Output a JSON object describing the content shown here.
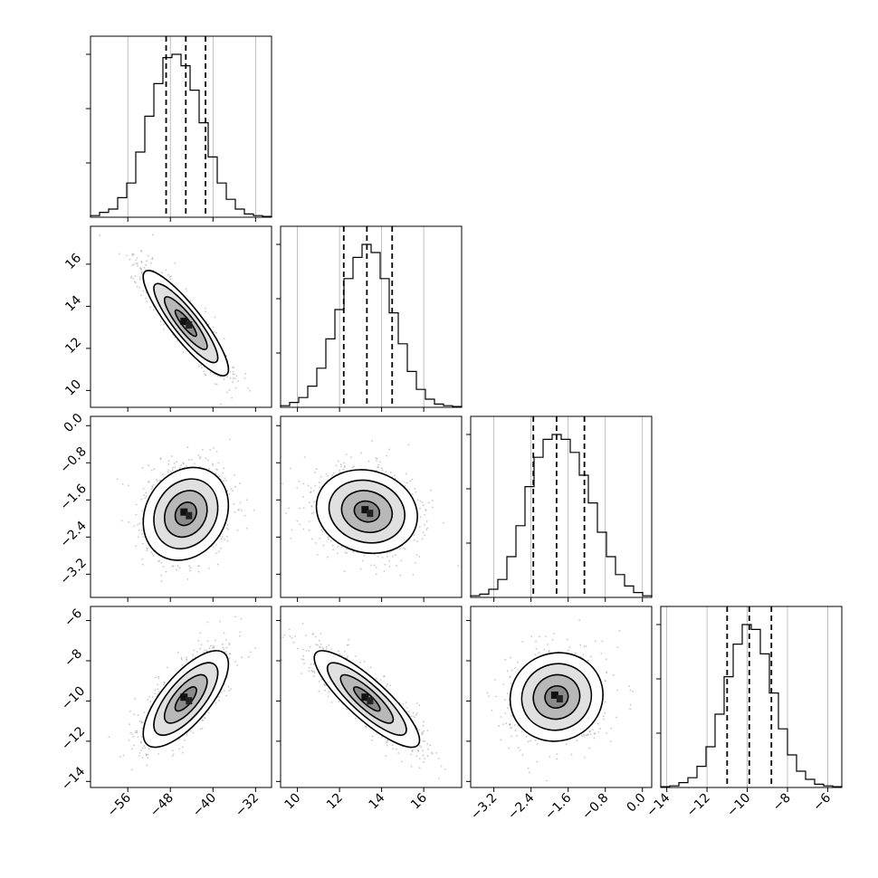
{
  "chart_data": {
    "type": "corner",
    "grid": true,
    "params": [
      {
        "range": [
          -63,
          -29
        ],
        "ticks": [
          -56,
          -48,
          -40,
          -32
        ],
        "tick_labels": [
          "−56",
          "−48",
          "−40",
          "−32"
        ],
        "quantiles": [
          -48.8,
          -45.1,
          -41.4
        ]
      },
      {
        "range": [
          9.2,
          17.8
        ],
        "ticks": [
          10,
          12,
          14,
          16
        ],
        "tick_labels": [
          "10",
          "12",
          "14",
          "16"
        ],
        "quantiles": [
          12.2,
          13.3,
          14.5
        ]
      },
      {
        "range": [
          -3.7,
          0.2
        ],
        "ticks": [
          -3.2,
          -2.4,
          -1.6,
          -0.8,
          0.0
        ],
        "tick_labels": [
          "−3.2",
          "−2.4",
          "−1.6",
          "−0.8",
          "0.0"
        ],
        "quantiles": [
          -2.35,
          -1.85,
          -1.25
        ]
      },
      {
        "range": [
          -14.3,
          -5.3
        ],
        "ticks": [
          -14,
          -12,
          -10,
          -8,
          -6
        ],
        "tick_labels": [
          "−14",
          "−12",
          "−10",
          "−8",
          "−6"
        ],
        "quantiles": [
          -11.0,
          -9.9,
          -8.8
        ]
      }
    ],
    "histograms": [
      [
        0.01,
        0.03,
        0.05,
        0.12,
        0.21,
        0.4,
        0.62,
        0.82,
        0.98,
        1.0,
        0.93,
        0.78,
        0.58,
        0.37,
        0.21,
        0.11,
        0.05,
        0.02,
        0.01,
        0.005
      ],
      [
        0.01,
        0.03,
        0.06,
        0.13,
        0.24,
        0.42,
        0.6,
        0.79,
        0.92,
        1.0,
        0.95,
        0.79,
        0.58,
        0.39,
        0.22,
        0.11,
        0.05,
        0.02,
        0.01,
        0.005
      ],
      [
        0.01,
        0.02,
        0.05,
        0.11,
        0.25,
        0.44,
        0.68,
        0.86,
        0.97,
        1.0,
        0.97,
        0.89,
        0.75,
        0.58,
        0.4,
        0.25,
        0.14,
        0.07,
        0.03,
        0.01
      ],
      [
        0.005,
        0.01,
        0.03,
        0.06,
        0.13,
        0.25,
        0.45,
        0.68,
        0.88,
        1.0,
        0.97,
        0.82,
        0.58,
        0.36,
        0.2,
        0.1,
        0.05,
        0.02,
        0.01,
        0.005
      ]
    ],
    "pairs": [
      {
        "x": 0,
        "y": 1,
        "center": [
          -45.1,
          13.2
        ],
        "sd": [
          4.0,
          1.25
        ],
        "corr": -0.88
      },
      {
        "x": 0,
        "y": 2,
        "center": [
          -45.1,
          -1.9
        ],
        "sd": [
          4.0,
          0.5
        ],
        "corr": 0.18
      },
      {
        "x": 1,
        "y": 2,
        "center": [
          13.3,
          -1.85
        ],
        "sd": [
          1.2,
          0.45
        ],
        "corr": -0.12
      },
      {
        "x": 0,
        "y": 3,
        "center": [
          -45.1,
          -9.9
        ],
        "sd": [
          4.0,
          1.2
        ],
        "corr": 0.72
      },
      {
        "x": 1,
        "y": 3,
        "center": [
          13.3,
          -9.9
        ],
        "sd": [
          1.25,
          1.2
        ],
        "corr": -0.85
      },
      {
        "x": 2,
        "y": 3,
        "center": [
          -1.85,
          -9.8
        ],
        "sd": [
          0.5,
          1.1
        ],
        "corr": 0.05
      }
    ],
    "contour_levels_sigma": [
      0.5,
      1.0,
      1.5,
      2.0
    ]
  }
}
